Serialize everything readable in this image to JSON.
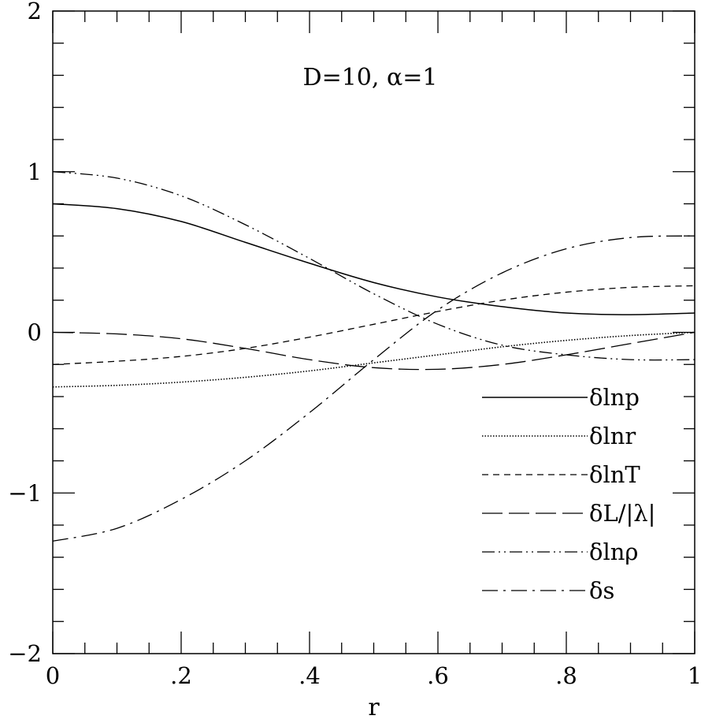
{
  "chart_data": {
    "type": "line",
    "annotation": "D=10,  α=1",
    "xlabel": "r",
    "ylabel": "",
    "xlim": [
      0,
      1
    ],
    "ylim": [
      -2,
      2
    ],
    "x_ticks": [
      0,
      0.2,
      0.4,
      0.6,
      0.8,
      1
    ],
    "x_tick_labels": [
      "0",
      ".2",
      ".4",
      ".6",
      ".8",
      "1"
    ],
    "y_ticks": [
      -2,
      -1,
      0,
      1,
      2
    ],
    "y_tick_labels": [
      "−2",
      "−1",
      "0",
      "1",
      "2"
    ],
    "grid": false,
    "legend_position": "lower-right",
    "series": [
      {
        "name": "δlnp",
        "style": "solid",
        "points": [
          [
            0,
            0.8
          ],
          [
            0.1,
            0.77
          ],
          [
            0.2,
            0.69
          ],
          [
            0.3,
            0.56
          ],
          [
            0.4,
            0.43
          ],
          [
            0.5,
            0.31
          ],
          [
            0.6,
            0.22
          ],
          [
            0.7,
            0.16
          ],
          [
            0.8,
            0.12
          ],
          [
            0.9,
            0.11
          ],
          [
            1.0,
            0.12
          ]
        ]
      },
      {
        "name": "δlnr",
        "style": "dotted",
        "points": [
          [
            0,
            -0.34
          ],
          [
            0.1,
            -0.33
          ],
          [
            0.2,
            -0.31
          ],
          [
            0.3,
            -0.28
          ],
          [
            0.4,
            -0.24
          ],
          [
            0.5,
            -0.19
          ],
          [
            0.6,
            -0.14
          ],
          [
            0.7,
            -0.09
          ],
          [
            0.8,
            -0.05
          ],
          [
            0.9,
            -0.02
          ],
          [
            1.0,
            0.0
          ]
        ]
      },
      {
        "name": "δlnT",
        "style": "short-dashed",
        "points": [
          [
            0,
            -0.2
          ],
          [
            0.1,
            -0.18
          ],
          [
            0.2,
            -0.15
          ],
          [
            0.3,
            -0.1
          ],
          [
            0.4,
            -0.03
          ],
          [
            0.5,
            0.05
          ],
          [
            0.6,
            0.13
          ],
          [
            0.7,
            0.2
          ],
          [
            0.8,
            0.25
          ],
          [
            0.9,
            0.28
          ],
          [
            1.0,
            0.29
          ]
        ]
      },
      {
        "name": "δL/|λ|",
        "style": "long-dashed",
        "points": [
          [
            0,
            0.0
          ],
          [
            0.1,
            -0.01
          ],
          [
            0.2,
            -0.04
          ],
          [
            0.3,
            -0.1
          ],
          [
            0.4,
            -0.17
          ],
          [
            0.5,
            -0.22
          ],
          [
            0.6,
            -0.23
          ],
          [
            0.7,
            -0.2
          ],
          [
            0.8,
            -0.14
          ],
          [
            0.9,
            -0.07
          ],
          [
            1.0,
            0.0
          ]
        ]
      },
      {
        "name": "δlnρ",
        "style": "dash-dot-dot",
        "points": [
          [
            0,
            1.0
          ],
          [
            0.1,
            0.96
          ],
          [
            0.2,
            0.85
          ],
          [
            0.3,
            0.67
          ],
          [
            0.4,
            0.46
          ],
          [
            0.5,
            0.24
          ],
          [
            0.6,
            0.05
          ],
          [
            0.7,
            -0.08
          ],
          [
            0.8,
            -0.14
          ],
          [
            0.9,
            -0.17
          ],
          [
            1.0,
            -0.17
          ]
        ]
      },
      {
        "name": "δs",
        "style": "dash-dot",
        "points": [
          [
            0,
            -1.3
          ],
          [
            0.1,
            -1.22
          ],
          [
            0.2,
            -1.04
          ],
          [
            0.3,
            -0.8
          ],
          [
            0.4,
            -0.5
          ],
          [
            0.5,
            -0.17
          ],
          [
            0.6,
            0.14
          ],
          [
            0.7,
            0.37
          ],
          [
            0.8,
            0.52
          ],
          [
            0.9,
            0.59
          ],
          [
            1.0,
            0.6
          ]
        ]
      }
    ]
  }
}
